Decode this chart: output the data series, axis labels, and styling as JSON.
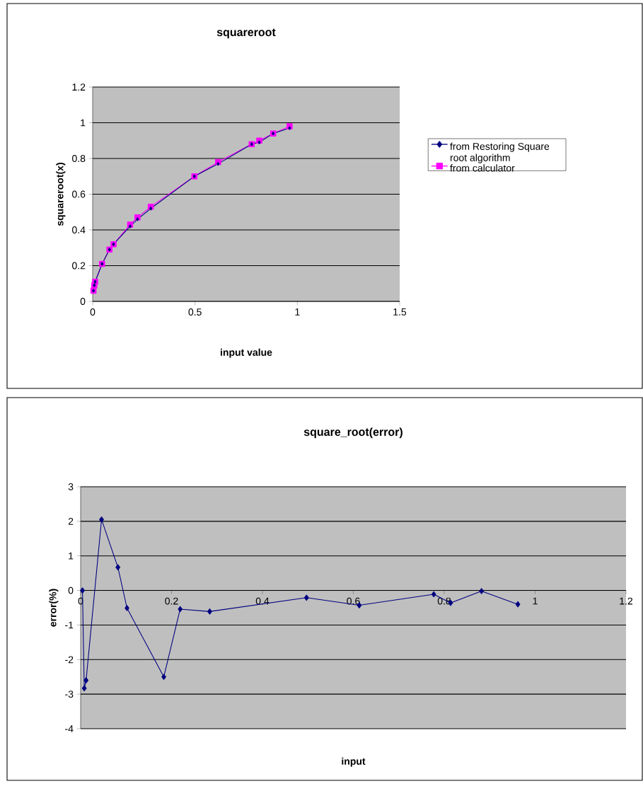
{
  "chart_data": [
    {
      "type": "line",
      "title": "squareroot",
      "xlabel": "input value",
      "ylabel": "squareroot(x)",
      "x": [
        0.004,
        0.008,
        0.012,
        0.046,
        0.082,
        0.102,
        0.183,
        0.219,
        0.284,
        0.497,
        0.613,
        0.777,
        0.814,
        0.882,
        0.962
      ],
      "series": [
        {
          "name": "from Restoring Square root algorithm",
          "color": "#000080",
          "marker": "diamond",
          "values": [
            0.06,
            0.09,
            0.11,
            0.21,
            0.29,
            0.32,
            0.42,
            0.46,
            0.52,
            0.7,
            0.77,
            0.88,
            0.89,
            0.94,
            0.97
          ]
        },
        {
          "name": "from calculator",
          "color": "#ff00ff",
          "marker": "square",
          "values": [
            0.06,
            0.09,
            0.11,
            0.21,
            0.29,
            0.32,
            0.43,
            0.47,
            0.53,
            0.7,
            0.78,
            0.88,
            0.9,
            0.94,
            0.98
          ]
        }
      ],
      "xlim": [
        0,
        1.5
      ],
      "xticks": [
        0,
        0.5,
        1,
        1.5
      ],
      "ylim": [
        0,
        1.2
      ],
      "yticks": [
        0,
        0.2,
        0.4,
        0.6,
        0.8,
        1,
        1.2
      ],
      "grid": "y",
      "legend": "right"
    },
    {
      "type": "line",
      "title": "square_root(error)",
      "xlabel": "input",
      "ylabel": "error(%)",
      "x": [
        0.004,
        0.008,
        0.012,
        0.046,
        0.082,
        0.102,
        0.183,
        0.219,
        0.284,
        0.497,
        0.613,
        0.777,
        0.814,
        0.882,
        0.962
      ],
      "series": [
        {
          "color": "#000080",
          "marker": "diamond",
          "values": [
            0,
            -2.83,
            -2.6,
            2.05,
            0.67,
            -0.51,
            -2.5,
            -0.54,
            -0.61,
            -0.21,
            -0.43,
            -0.11,
            -0.36,
            -0.02,
            -0.4
          ]
        }
      ],
      "xlim": [
        0,
        1.2
      ],
      "xticks": [
        0,
        0.2,
        0.4,
        0.6,
        0.8,
        1,
        1.2
      ],
      "ylim": [
        -4,
        3
      ],
      "yticks": [
        -4,
        -3,
        -2,
        -1,
        0,
        1,
        2,
        3
      ],
      "grid": "y",
      "legend": false
    }
  ]
}
